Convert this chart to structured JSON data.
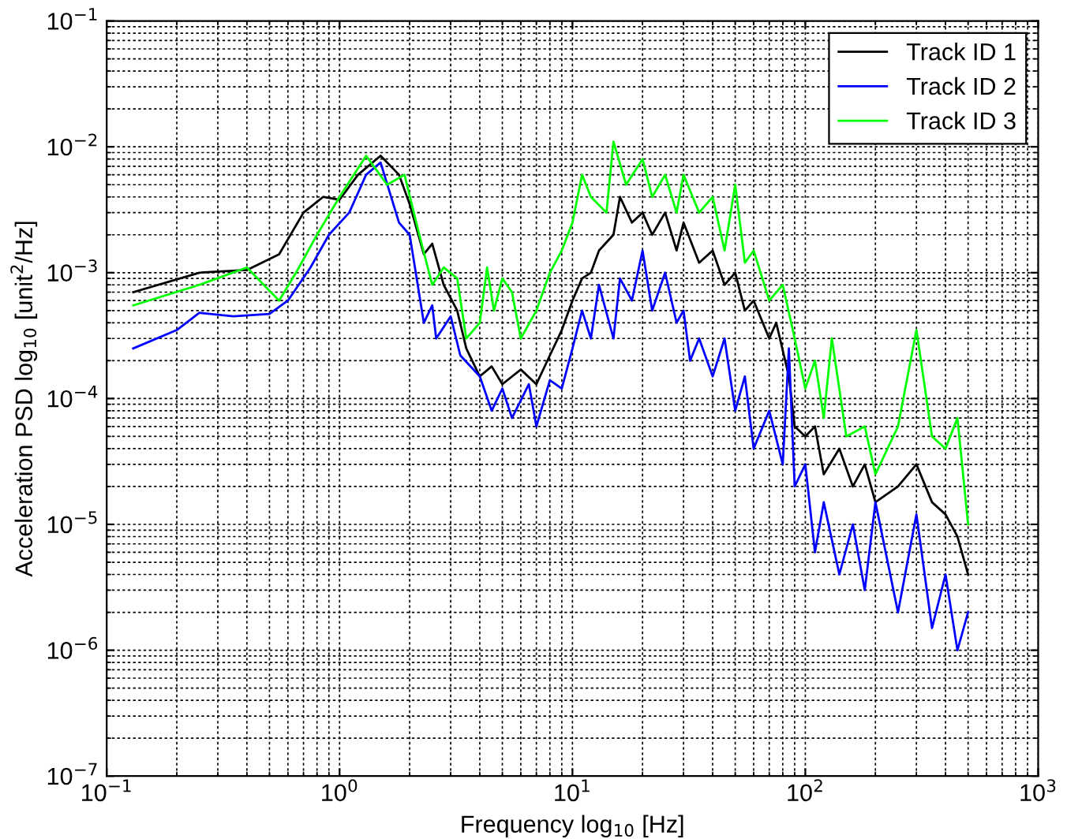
{
  "chart_data": {
    "type": "line",
    "xlabel": "Frequency log$_{10}$ [Hz]",
    "ylabel": "Acceleration PSD log$_{10}$ [unit$^{2}$/Hz]",
    "log": "xy",
    "grid": true,
    "legend": "top right",
    "marker": "none",
    "line_style": "solid",
    "xlim": [
      0.1,
      1000
    ],
    "ylim": [
      1e-07,
      0.1
    ],
    "xticks": [
      {
        "value": 0.1,
        "label": "10$^{−1}$"
      },
      {
        "value": 1,
        "label": "10$^{0}$"
      },
      {
        "value": 10,
        "label": "10$^{1}$"
      },
      {
        "value": 100,
        "label": "10$^{2}$"
      },
      {
        "value": 1000,
        "label": "10$^{3}$"
      }
    ],
    "yticks": [
      {
        "value": 1e-07,
        "label": "10$^{−7}$"
      },
      {
        "value": 1e-06,
        "label": "10$^{−6}$"
      },
      {
        "value": 1e-05,
        "label": "10$^{−5}$"
      },
      {
        "value": 0.0001,
        "label": "10$^{−4}$"
      },
      {
        "value": 0.001,
        "label": "10$^{−3}$"
      },
      {
        "value": 0.01,
        "label": "10$^{−2}$"
      },
      {
        "value": 0.1,
        "label": "10$^{−1}$"
      }
    ],
    "series": [
      {
        "name": "Track ID 1",
        "color": "#000000",
        "x": [
          0.13,
          0.25,
          0.4,
          0.55,
          0.7,
          0.85,
          1.0,
          1.2,
          1.5,
          1.8,
          2.0,
          2.3,
          2.5,
          2.8,
          3.2,
          3.5,
          4,
          4.5,
          5,
          6,
          7,
          8,
          9,
          10,
          11,
          12,
          13,
          15,
          16,
          18,
          20,
          22,
          25,
          28,
          30,
          35,
          40,
          45,
          50,
          55,
          60,
          70,
          75,
          85,
          90,
          100,
          110,
          120,
          140,
          160,
          180,
          200,
          250,
          300,
          350,
          400,
          450,
          500
        ],
        "values": [
          0.0007,
          0.001,
          0.00105,
          0.0014,
          0.003,
          0.004,
          0.0038,
          0.006,
          0.0085,
          0.006,
          0.0035,
          0.0014,
          0.0017,
          0.0008,
          0.0005,
          0.00025,
          0.00015,
          0.00018,
          0.00013,
          0.00017,
          0.00013,
          0.00022,
          0.00035,
          0.0006,
          0.0009,
          0.001,
          0.0015,
          0.002,
          0.004,
          0.0025,
          0.003,
          0.002,
          0.003,
          0.0015,
          0.0025,
          0.0012,
          0.0015,
          0.0008,
          0.001,
          0.0005,
          0.0006,
          0.0003,
          0.0004,
          0.00015,
          6e-05,
          5e-05,
          6e-05,
          2.5e-05,
          4e-05,
          2e-05,
          3e-05,
          1.5e-05,
          2e-05,
          3e-05,
          1.5e-05,
          1.2e-05,
          8e-06,
          4e-06
        ]
      },
      {
        "name": "Track ID 2",
        "color": "#0000ff",
        "x": [
          0.13,
          0.2,
          0.25,
          0.35,
          0.5,
          0.6,
          0.75,
          0.9,
          1.1,
          1.3,
          1.5,
          1.8,
          2.0,
          2.3,
          2.5,
          2.6,
          3,
          3.3,
          4,
          4.5,
          5,
          5.5,
          6.5,
          7,
          8,
          9,
          10,
          11,
          12,
          13,
          15,
          16,
          18,
          20,
          22,
          25,
          28,
          30,
          32,
          35,
          40,
          45,
          50,
          55,
          60,
          70,
          80,
          85,
          90,
          100,
          110,
          120,
          140,
          160,
          180,
          200,
          250,
          300,
          350,
          400,
          450,
          500
        ],
        "values": [
          0.00025,
          0.00035,
          0.00048,
          0.00045,
          0.00047,
          0.0006,
          0.0011,
          0.002,
          0.003,
          0.006,
          0.0075,
          0.0025,
          0.002,
          0.0004,
          0.00055,
          0.0003,
          0.00045,
          0.00022,
          0.00015,
          8e-05,
          0.00012,
          7e-05,
          0.00013,
          6e-05,
          0.00014,
          0.00012,
          0.00025,
          0.0005,
          0.0003,
          0.0008,
          0.0003,
          0.0009,
          0.0006,
          0.0015,
          0.0005,
          0.001,
          0.0004,
          0.0005,
          0.0002,
          0.0003,
          0.00015,
          0.0003,
          8e-05,
          0.00015,
          4e-05,
          8e-05,
          3e-05,
          0.00025,
          2e-05,
          3e-05,
          6e-06,
          1.5e-05,
          4e-06,
          1e-05,
          3e-06,
          1.5e-05,
          2e-06,
          1.2e-05,
          1.5e-06,
          4e-06,
          1e-06,
          2e-06
        ]
      },
      {
        "name": "Track ID 3",
        "color": "#00ff00",
        "x": [
          0.13,
          0.25,
          0.4,
          0.55,
          0.65,
          0.8,
          1.0,
          1.3,
          1.6,
          1.9,
          2.2,
          2.5,
          2.8,
          3.2,
          3.5,
          4,
          4.3,
          4.6,
          5,
          5.5,
          6,
          7,
          8,
          9,
          10,
          11,
          12,
          14,
          15,
          17,
          20,
          22,
          25,
          28,
          30,
          35,
          40,
          45,
          50,
          55,
          60,
          70,
          80,
          90,
          100,
          110,
          120,
          130,
          150,
          180,
          200,
          250,
          300,
          350,
          400,
          450,
          500
        ],
        "values": [
          0.00055,
          0.0008,
          0.0011,
          0.0006,
          0.001,
          0.002,
          0.004,
          0.0085,
          0.005,
          0.006,
          0.002,
          0.0008,
          0.0011,
          0.0009,
          0.0003,
          0.0004,
          0.0011,
          0.0005,
          0.0009,
          0.0007,
          0.0003,
          0.0005,
          0.001,
          0.0015,
          0.0025,
          0.006,
          0.004,
          0.003,
          0.011,
          0.005,
          0.008,
          0.004,
          0.006,
          0.003,
          0.006,
          0.003,
          0.004,
          0.0015,
          0.005,
          0.0012,
          0.0015,
          0.0006,
          0.0008,
          0.0003,
          0.00012,
          0.0002,
          7e-05,
          0.0003,
          5e-05,
          6e-05,
          2.5e-05,
          6e-05,
          0.00035,
          5e-05,
          4e-05,
          7e-05,
          1e-05
        ]
      }
    ]
  }
}
